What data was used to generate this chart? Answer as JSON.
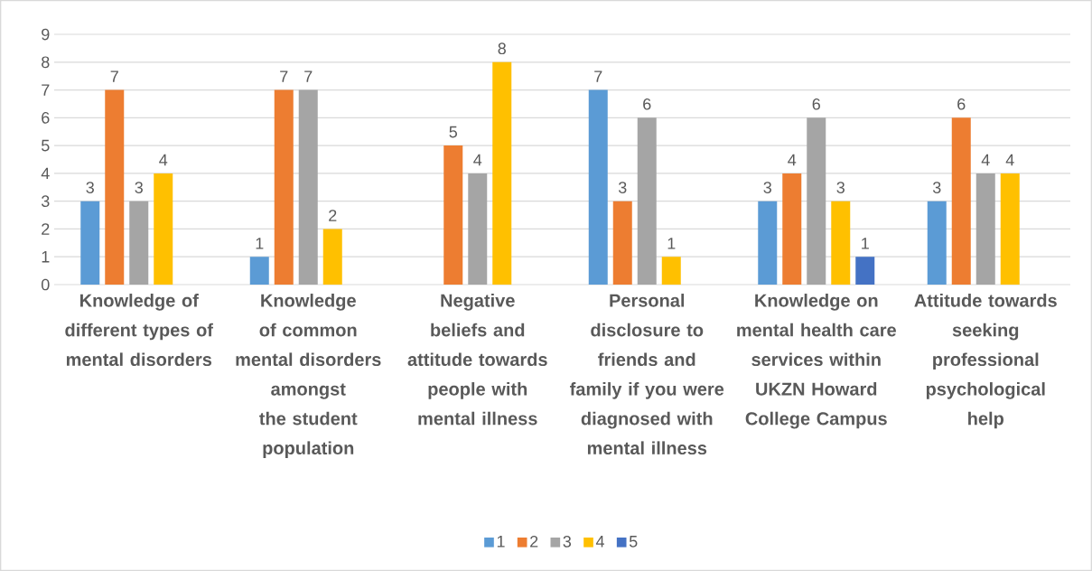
{
  "chart_data": {
    "type": "bar",
    "categories": [
      "Knowledge of different types of mental disorders",
      "Knowledge of common mental disorders amongst the student population",
      "Negative beliefs and attitude towards people with mental illness",
      "Personal disclosure to friends and family if you were diagnosed with mental illness",
      "Knowledge on mental health care services within UKZN Howard College Campus",
      "Attitude towards seeking professional psychological help"
    ],
    "series": [
      {
        "name": "1",
        "color": "#5b9bd5",
        "values": [
          3,
          1,
          null,
          7,
          3,
          3
        ]
      },
      {
        "name": "2",
        "color": "#ed7d31",
        "values": [
          7,
          7,
          5,
          3,
          4,
          6
        ]
      },
      {
        "name": "3",
        "color": "#a5a5a5",
        "values": [
          3,
          7,
          4,
          6,
          6,
          4
        ]
      },
      {
        "name": "4",
        "color": "#ffc000",
        "values": [
          4,
          2,
          8,
          1,
          3,
          4
        ]
      },
      {
        "name": "5",
        "color": "#4472c4",
        "values": [
          null,
          null,
          null,
          null,
          1,
          null
        ]
      }
    ],
    "ylim": [
      0,
      9
    ],
    "yticks": [
      0,
      1,
      2,
      3,
      4,
      5,
      6,
      7,
      8,
      9
    ],
    "grid": "y",
    "legend": "bottom",
    "data_labels": true
  }
}
